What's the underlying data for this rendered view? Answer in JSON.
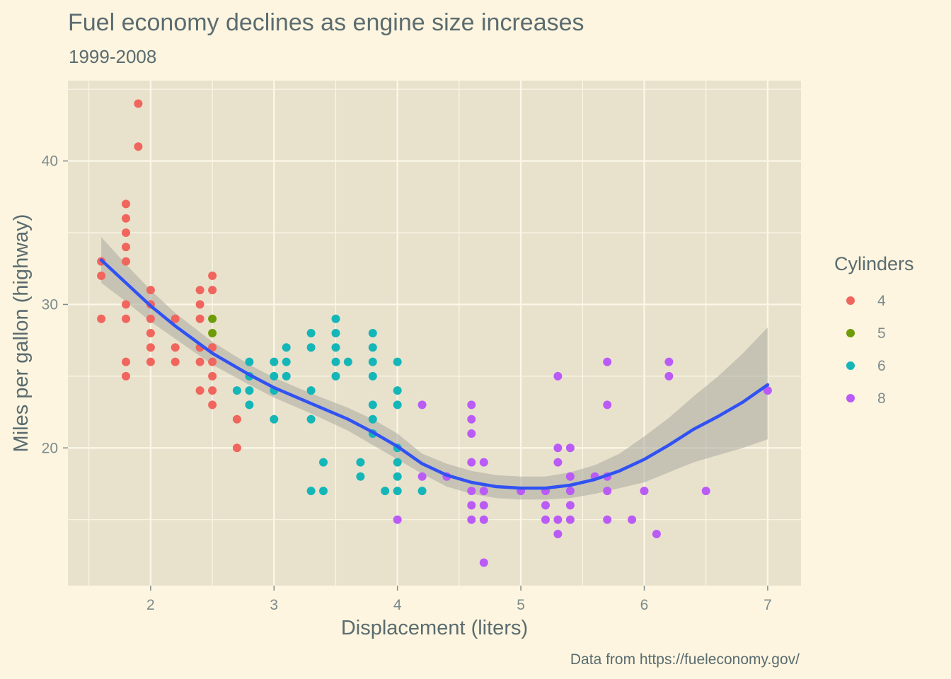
{
  "colors": {
    "page_background": "#fdf5df",
    "panel_background": "#e8e2cc",
    "grid": "#fbf6e7",
    "smooth_line": "#3152f2",
    "ribbon": "#aaa9a0",
    "text": "#5b6c70",
    "tick_text": "#7c8b8f"
  },
  "chart_data": {
    "type": "scatter",
    "title": "Fuel economy declines as engine size increases",
    "subtitle": "1999-2008",
    "xlabel": "Displacement (liters)",
    "ylabel": "Miles per gallon (highway)",
    "caption": "Data from https://fueleconomy.gov/",
    "xlim": [
      1.33,
      7.27
    ],
    "ylim": [
      10.4,
      45.6
    ],
    "x_ticks": [
      2,
      3,
      4,
      5,
      6,
      7
    ],
    "y_ticks": [
      20,
      30,
      40
    ],
    "grid": true,
    "legend": {
      "title": "Cylinders",
      "placement": "right",
      "entries": [
        {
          "label": "4",
          "color": "#f0655d"
        },
        {
          "label": "5",
          "color": "#6e9c06"
        },
        {
          "label": "6",
          "color": "#14b6b8"
        },
        {
          "label": "8",
          "color": "#bb5bf6"
        }
      ]
    },
    "series": [
      {
        "name": "4",
        "color": "#f0655d",
        "points": [
          [
            1.6,
            33
          ],
          [
            1.6,
            32
          ],
          [
            1.6,
            29
          ],
          [
            1.8,
            37
          ],
          [
            1.8,
            36
          ],
          [
            1.8,
            35
          ],
          [
            1.8,
            34
          ],
          [
            1.8,
            33
          ],
          [
            1.8,
            30
          ],
          [
            1.8,
            29
          ],
          [
            1.8,
            26
          ],
          [
            1.8,
            25
          ],
          [
            1.9,
            44
          ],
          [
            1.9,
            41
          ],
          [
            2.0,
            31
          ],
          [
            2.0,
            30
          ],
          [
            2.0,
            29
          ],
          [
            2.0,
            28
          ],
          [
            2.0,
            27
          ],
          [
            2.0,
            26
          ],
          [
            2.2,
            29
          ],
          [
            2.2,
            27
          ],
          [
            2.2,
            26
          ],
          [
            2.4,
            31
          ],
          [
            2.4,
            30
          ],
          [
            2.4,
            29
          ],
          [
            2.4,
            27
          ],
          [
            2.4,
            26
          ],
          [
            2.4,
            24
          ],
          [
            2.5,
            32
          ],
          [
            2.5,
            31
          ],
          [
            2.5,
            27
          ],
          [
            2.5,
            26
          ],
          [
            2.5,
            25
          ],
          [
            2.5,
            24
          ],
          [
            2.5,
            23
          ],
          [
            2.7,
            22
          ],
          [
            2.7,
            20
          ]
        ]
      },
      {
        "name": "5",
        "color": "#6e9c06",
        "points": [
          [
            2.5,
            29
          ],
          [
            2.5,
            28
          ]
        ]
      },
      {
        "name": "6",
        "color": "#14b6b8",
        "points": [
          [
            2.7,
            24
          ],
          [
            2.8,
            26
          ],
          [
            2.8,
            25
          ],
          [
            2.8,
            24
          ],
          [
            2.8,
            23
          ],
          [
            3.0,
            26
          ],
          [
            3.0,
            25
          ],
          [
            3.0,
            24
          ],
          [
            3.0,
            22
          ],
          [
            3.1,
            27
          ],
          [
            3.1,
            26
          ],
          [
            3.1,
            25
          ],
          [
            3.3,
            28
          ],
          [
            3.3,
            27
          ],
          [
            3.3,
            24
          ],
          [
            3.3,
            22
          ],
          [
            3.3,
            17
          ],
          [
            3.4,
            19
          ],
          [
            3.4,
            17
          ],
          [
            3.5,
            29
          ],
          [
            3.5,
            28
          ],
          [
            3.5,
            27
          ],
          [
            3.5,
            26
          ],
          [
            3.5,
            25
          ],
          [
            3.6,
            26
          ],
          [
            3.7,
            19
          ],
          [
            3.7,
            18
          ],
          [
            3.8,
            28
          ],
          [
            3.8,
            27
          ],
          [
            3.8,
            26
          ],
          [
            3.8,
            25
          ],
          [
            3.8,
            23
          ],
          [
            3.8,
            22
          ],
          [
            3.8,
            21
          ],
          [
            3.9,
            17
          ],
          [
            4.0,
            26
          ],
          [
            4.0,
            24
          ],
          [
            4.0,
            23
          ],
          [
            4.0,
            20
          ],
          [
            4.0,
            19
          ],
          [
            4.0,
            18
          ],
          [
            4.0,
            17
          ],
          [
            4.2,
            17
          ]
        ]
      },
      {
        "name": "8",
        "color": "#bb5bf6",
        "points": [
          [
            4.0,
            15
          ],
          [
            4.2,
            23
          ],
          [
            4.2,
            18
          ],
          [
            4.4,
            18
          ],
          [
            4.6,
            23
          ],
          [
            4.6,
            22
          ],
          [
            4.6,
            21
          ],
          [
            4.6,
            19
          ],
          [
            4.6,
            17
          ],
          [
            4.6,
            16
          ],
          [
            4.6,
            15
          ],
          [
            4.7,
            19
          ],
          [
            4.7,
            17
          ],
          [
            4.7,
            16
          ],
          [
            4.7,
            15
          ],
          [
            4.7,
            12
          ],
          [
            5.0,
            17
          ],
          [
            5.2,
            17
          ],
          [
            5.2,
            16
          ],
          [
            5.2,
            15
          ],
          [
            5.3,
            25
          ],
          [
            5.3,
            20
          ],
          [
            5.3,
            19
          ],
          [
            5.3,
            15
          ],
          [
            5.3,
            14
          ],
          [
            5.4,
            20
          ],
          [
            5.4,
            18
          ],
          [
            5.4,
            17
          ],
          [
            5.4,
            16
          ],
          [
            5.4,
            15
          ],
          [
            5.6,
            18
          ],
          [
            5.7,
            26
          ],
          [
            5.7,
            23
          ],
          [
            5.7,
            18
          ],
          [
            5.7,
            17
          ],
          [
            5.7,
            15
          ],
          [
            5.9,
            15
          ],
          [
            6.0,
            17
          ],
          [
            6.1,
            14
          ],
          [
            6.2,
            26
          ],
          [
            6.2,
            25
          ],
          [
            6.5,
            17
          ],
          [
            7.0,
            24
          ]
        ]
      }
    ],
    "smooth": {
      "color": "#3152f2",
      "points": [
        [
          1.6,
          33.1
        ],
        [
          1.8,
          31.5
        ],
        [
          2.0,
          29.9
        ],
        [
          2.2,
          28.5
        ],
        [
          2.5,
          26.6
        ],
        [
          2.8,
          25.1
        ],
        [
          3.0,
          24.2
        ],
        [
          3.3,
          23.1
        ],
        [
          3.6,
          22.0
        ],
        [
          3.8,
          21.1
        ],
        [
          4.0,
          20.1
        ],
        [
          4.2,
          18.9
        ],
        [
          4.4,
          18.1
        ],
        [
          4.6,
          17.6
        ],
        [
          4.8,
          17.3
        ],
        [
          5.0,
          17.2
        ],
        [
          5.2,
          17.2
        ],
        [
          5.4,
          17.4
        ],
        [
          5.6,
          17.8
        ],
        [
          5.8,
          18.4
        ],
        [
          6.0,
          19.2
        ],
        [
          6.2,
          20.2
        ],
        [
          6.4,
          21.3
        ],
        [
          6.6,
          22.2
        ],
        [
          6.8,
          23.2
        ],
        [
          7.0,
          24.4
        ]
      ],
      "ribbon_upper": [
        [
          1.6,
          34.7
        ],
        [
          1.8,
          32.8
        ],
        [
          2.0,
          31.0
        ],
        [
          2.2,
          29.4
        ],
        [
          2.5,
          27.4
        ],
        [
          2.8,
          25.8
        ],
        [
          3.0,
          24.9
        ],
        [
          3.3,
          23.8
        ],
        [
          3.6,
          22.8
        ],
        [
          3.8,
          22.0
        ],
        [
          4.0,
          21.0
        ],
        [
          4.2,
          19.6
        ],
        [
          4.4,
          18.9
        ],
        [
          4.6,
          18.4
        ],
        [
          4.8,
          18.1
        ],
        [
          5.0,
          18.0
        ],
        [
          5.2,
          18.0
        ],
        [
          5.4,
          18.3
        ],
        [
          5.6,
          18.8
        ],
        [
          5.8,
          19.6
        ],
        [
          6.0,
          20.8
        ],
        [
          6.2,
          22.1
        ],
        [
          6.4,
          23.6
        ],
        [
          6.6,
          25.0
        ],
        [
          6.8,
          26.6
        ],
        [
          7.0,
          28.4
        ]
      ],
      "ribbon_lower": [
        [
          1.6,
          31.5
        ],
        [
          1.8,
          30.2
        ],
        [
          2.0,
          28.8
        ],
        [
          2.2,
          27.6
        ],
        [
          2.5,
          25.8
        ],
        [
          2.8,
          24.4
        ],
        [
          3.0,
          23.5
        ],
        [
          3.3,
          22.4
        ],
        [
          3.6,
          21.2
        ],
        [
          3.8,
          20.2
        ],
        [
          4.0,
          19.2
        ],
        [
          4.2,
          18.2
        ],
        [
          4.4,
          17.3
        ],
        [
          4.6,
          16.8
        ],
        [
          4.8,
          16.5
        ],
        [
          5.0,
          16.4
        ],
        [
          5.2,
          16.4
        ],
        [
          5.4,
          16.5
        ],
        [
          5.6,
          16.8
        ],
        [
          5.8,
          17.2
        ],
        [
          6.0,
          17.6
        ],
        [
          6.2,
          18.3
        ],
        [
          6.4,
          19.0
        ],
        [
          6.6,
          19.5
        ],
        [
          6.8,
          20.0
        ],
        [
          7.0,
          20.6
        ]
      ]
    }
  }
}
